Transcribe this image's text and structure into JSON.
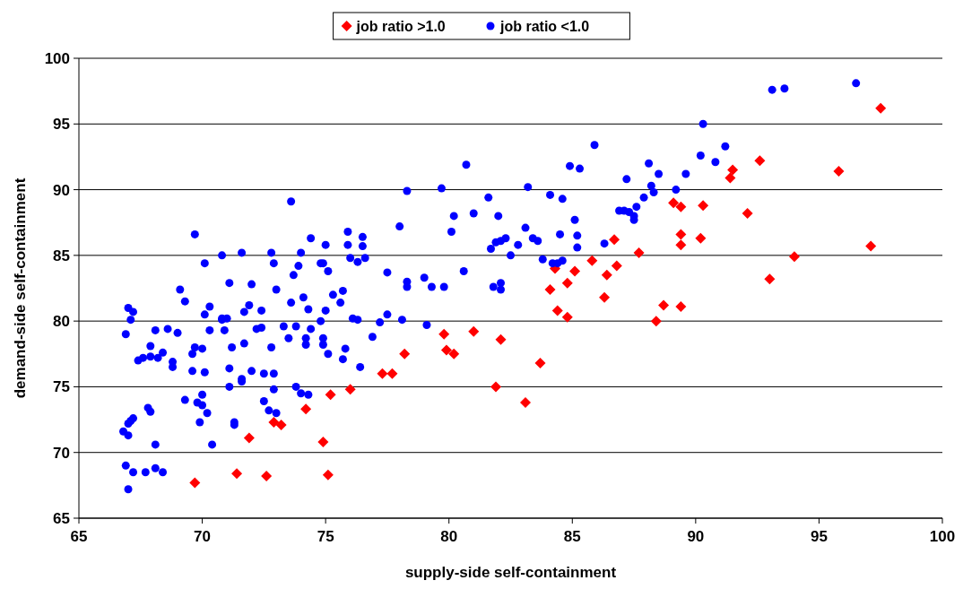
{
  "chart_data": {
    "type": "scatter",
    "xlabel": "supply-side self-containment",
    "ylabel": "demand-side self-containment",
    "xlim": [
      65,
      100
    ],
    "xticks": [
      65,
      70,
      75,
      80,
      85,
      90,
      95,
      100
    ],
    "ylim": [
      65,
      100
    ],
    "yticks": [
      65,
      70,
      75,
      80,
      85,
      90,
      95,
      100
    ],
    "grid": "y",
    "legend": "top",
    "series": [
      {
        "name": "job ratio >1.0",
        "color": "#ff0000",
        "marker": "diamond",
        "x": [
          69.7,
          71.4,
          72.6,
          75.1,
          74.9,
          71.9,
          72.9,
          73.2,
          74.2,
          75.2,
          76.0,
          77.3,
          77.7,
          78.2,
          79.8,
          79.9,
          80.2,
          81.0,
          81.9,
          82.1,
          83.1,
          83.7,
          84.1,
          84.3,
          84.4,
          84.8,
          84.8,
          85.1,
          85.8,
          86.3,
          86.4,
          86.7,
          86.8,
          87.7,
          88.4,
          88.7,
          89.1,
          89.4,
          89.4,
          89.4,
          89.4,
          90.3,
          90.2,
          91.4,
          91.5,
          92.6,
          92.1,
          93.0,
          94.0,
          95.8,
          97.1,
          97.5
        ],
        "values": [
          67.7,
          68.4,
          68.2,
          68.3,
          70.8,
          71.1,
          72.3,
          72.1,
          73.3,
          74.4,
          74.8,
          76.0,
          76.0,
          77.5,
          79.0,
          77.8,
          77.5,
          79.2,
          75.0,
          78.6,
          73.8,
          76.8,
          82.4,
          84.0,
          80.8,
          80.3,
          82.9,
          83.8,
          84.6,
          81.8,
          83.5,
          86.2,
          84.2,
          85.2,
          80.0,
          81.2,
          89.0,
          88.7,
          86.6,
          85.8,
          81.1,
          88.8,
          86.3,
          90.9,
          91.5,
          92.2,
          88.2,
          83.2,
          84.9,
          91.4,
          85.7,
          96.2
        ]
      },
      {
        "name": "job ratio <1.0",
        "color": "#0000ff",
        "marker": "circle",
        "x": [
          66.8,
          66.9,
          67.0,
          67.0,
          67.0,
          67.1,
          67.2,
          66.9,
          67.0,
          67.2,
          67.1,
          67.4,
          67.6,
          67.8,
          67.9,
          67.2,
          67.7,
          68.1,
          68.4,
          68.1,
          67.9,
          67.9,
          68.1,
          68.2,
          68.4,
          68.6,
          68.8,
          68.8,
          69.0,
          69.1,
          69.3,
          69.3,
          69.6,
          69.6,
          69.7,
          69.7,
          69.8,
          69.9,
          70.0,
          70.0,
          70.1,
          70.0,
          70.1,
          70.1,
          70.3,
          70.3,
          70.2,
          70.4,
          70.8,
          70.8,
          70.8,
          70.9,
          71.0,
          71.1,
          71.1,
          71.1,
          71.2,
          71.3,
          71.3,
          71.6,
          71.6,
          71.6,
          71.7,
          71.7,
          71.9,
          72.0,
          72.0,
          72.2,
          72.4,
          72.4,
          72.5,
          72.5,
          72.7,
          72.8,
          72.8,
          72.9,
          72.9,
          72.9,
          73.0,
          73.0,
          73.3,
          73.5,
          73.6,
          73.6,
          73.7,
          73.8,
          73.8,
          73.9,
          74.0,
          74.0,
          74.1,
          74.2,
          74.2,
          74.3,
          74.3,
          74.4,
          74.4,
          74.8,
          74.9,
          74.9,
          74.8,
          74.9,
          75.0,
          75.0,
          75.1,
          75.1,
          75.3,
          75.6,
          75.7,
          75.7,
          75.8,
          75.9,
          75.9,
          76.0,
          76.1,
          76.3,
          76.3,
          76.4,
          76.5,
          76.5,
          76.6,
          76.9,
          77.2,
          77.5,
          77.5,
          78.0,
          78.1,
          78.3,
          78.3,
          78.3,
          79.0,
          79.1,
          79.3,
          79.7,
          79.8,
          80.1,
          80.2,
          80.6,
          80.7,
          81.0,
          81.6,
          81.7,
          81.8,
          81.9,
          82.0,
          82.1,
          82.1,
          82.1,
          82.3,
          82.5,
          82.8,
          83.1,
          83.2,
          83.4,
          83.6,
          83.8,
          84.1,
          84.2,
          84.4,
          84.5,
          84.6,
          84.6,
          84.9,
          85.1,
          85.2,
          85.2,
          85.3,
          85.9,
          86.3,
          86.9,
          87.1,
          87.2,
          87.3,
          87.5,
          87.5,
          87.6,
          87.9,
          88.1,
          88.2,
          88.3,
          88.5,
          89.2,
          89.6,
          90.2,
          90.3,
          90.8,
          91.2,
          93.1,
          93.6,
          96.5
        ],
        "values": [
          71.6,
          69.0,
          67.2,
          71.3,
          72.2,
          72.4,
          72.6,
          79.0,
          81.0,
          80.7,
          80.1,
          77.0,
          77.2,
          73.4,
          73.1,
          68.5,
          68.5,
          68.8,
          68.5,
          70.6,
          78.1,
          77.3,
          79.3,
          77.2,
          77.6,
          79.4,
          76.9,
          76.5,
          79.1,
          82.4,
          81.5,
          74.0,
          76.2,
          77.5,
          78.0,
          86.6,
          73.8,
          72.3,
          73.6,
          74.4,
          76.1,
          77.9,
          80.5,
          84.4,
          79.3,
          81.1,
          73.0,
          70.6,
          80.1,
          80.2,
          85.0,
          79.3,
          80.2,
          82.9,
          76.4,
          75.0,
          78.0,
          72.3,
          72.1,
          85.2,
          75.4,
          75.6,
          78.3,
          80.7,
          81.2,
          82.8,
          76.2,
          79.4,
          80.8,
          79.5,
          73.9,
          76.0,
          73.2,
          78.0,
          85.2,
          84.4,
          74.8,
          76.0,
          73.0,
          82.4,
          79.6,
          78.7,
          81.4,
          89.1,
          83.5,
          79.6,
          75.0,
          84.2,
          74.5,
          85.2,
          81.8,
          78.7,
          78.2,
          80.9,
          74.4,
          79.4,
          86.3,
          80.0,
          78.7,
          78.2,
          84.4,
          84.4,
          85.8,
          80.8,
          77.5,
          83.8,
          82.0,
          81.4,
          82.3,
          77.1,
          77.9,
          86.8,
          85.8,
          84.8,
          80.2,
          80.1,
          84.5,
          76.5,
          86.4,
          85.7,
          84.8,
          78.8,
          79.9,
          80.5,
          83.7,
          87.2,
          80.1,
          82.6,
          83.0,
          89.9,
          83.3,
          79.7,
          82.6,
          90.1,
          82.6,
          86.8,
          88.0,
          83.8,
          91.9,
          88.2,
          89.4,
          85.5,
          82.6,
          86.0,
          88.0,
          86.1,
          82.9,
          82.4,
          86.3,
          85.0,
          85.8,
          87.1,
          90.2,
          86.3,
          86.1,
          84.7,
          89.6,
          84.4,
          84.4,
          86.6,
          89.3,
          84.6,
          91.8,
          87.7,
          86.5,
          85.6,
          91.6,
          93.4,
          85.9,
          88.4,
          88.4,
          90.8,
          88.3,
          88.0,
          87.7,
          88.7,
          89.4,
          92.0,
          90.3,
          89.8,
          91.2,
          90.0,
          91.2,
          92.6,
          95.0,
          92.1,
          93.3,
          97.6,
          97.7,
          98.1
        ]
      }
    ]
  }
}
